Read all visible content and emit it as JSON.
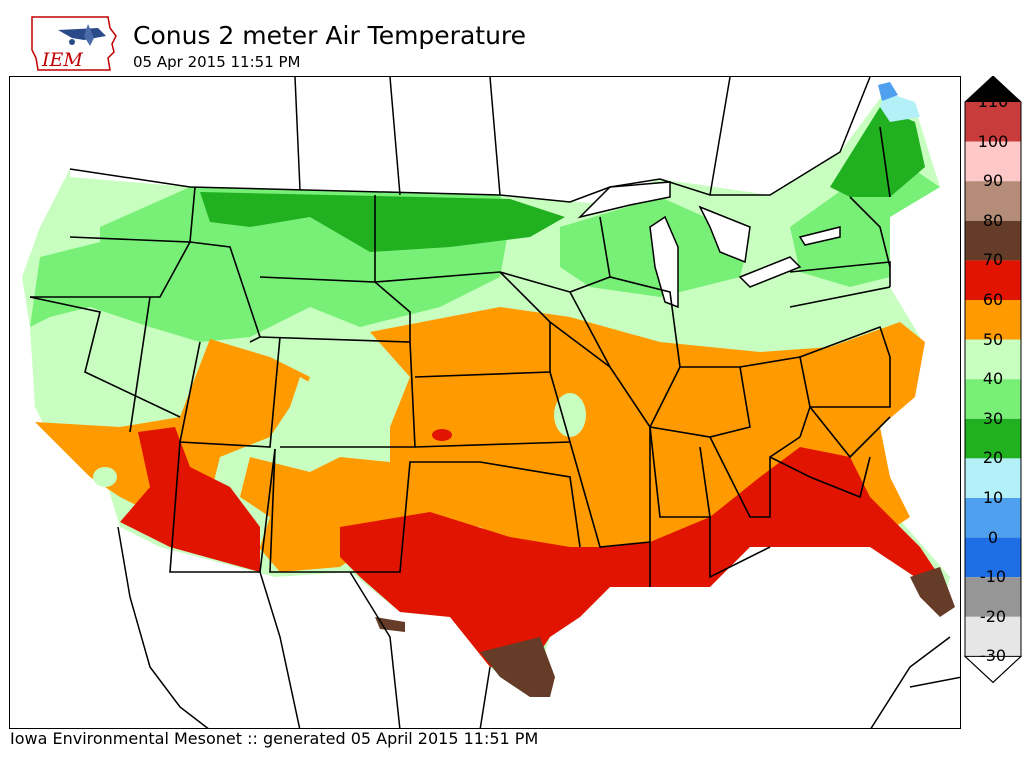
{
  "header": {
    "logo_text": "IEM",
    "title": "Conus 2 meter Air Temperature",
    "subtitle": "05 Apr 2015 11:51 PM"
  },
  "footer": {
    "credit": "Iowa Environmental Mesonet :: generated 05 April 2015 11:51 PM"
  },
  "legend": {
    "labels": [
      "110",
      "100",
      "90",
      "80",
      "70",
      "60",
      "50",
      "40",
      "30",
      "20",
      "10",
      "0",
      "-10",
      "-20",
      "-30"
    ],
    "colors": [
      "#c83c3c",
      "#ffc8c8",
      "#b48c78",
      "#643c28",
      "#e01400",
      "#ff9a00",
      "#c8ffc0",
      "#78f078",
      "#20b020",
      "#b4f0f8",
      "#50a0f0",
      "#1e6ee6",
      "#969696",
      "#e6e6e6"
    ],
    "over_color": "#000000",
    "under_color": "#ffffff"
  },
  "colors": {
    "band_20_30": "#20b020",
    "band_30_40": "#78f078",
    "band_40_50": "#c8ffc0",
    "band_50_60": "#ff9a00",
    "band_60_70": "#e01400",
    "band_70_80": "#643c28",
    "band_0_10": "#50a0f0",
    "band_10_20": "#b4f0f8"
  }
}
